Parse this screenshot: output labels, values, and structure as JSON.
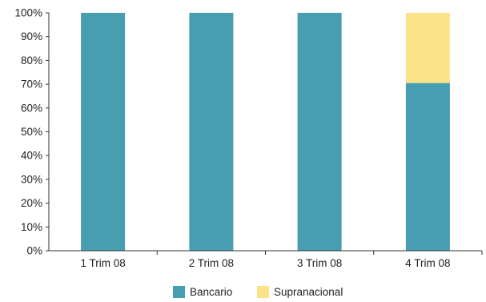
{
  "chart_data": {
    "type": "bar",
    "stacked": true,
    "categories": [
      "1 Trim 08",
      "2 Trim 08",
      "3 Trim 08",
      "4 Trim 08"
    ],
    "series": [
      {
        "name": "Bancario",
        "color": "#469eb0",
        "values": [
          100,
          100,
          100,
          70.5
        ]
      },
      {
        "name": "Supranacional",
        "color": "#fce38a",
        "values": [
          0,
          0,
          0,
          29.5
        ]
      }
    ],
    "yticks": [
      "0%",
      "10%",
      "20%",
      "30%",
      "40%",
      "50%",
      "60%",
      "70%",
      "80%",
      "90%",
      "100%"
    ],
    "ylim": [
      0,
      100
    ],
    "grid": false,
    "legend_position": "bottom"
  }
}
